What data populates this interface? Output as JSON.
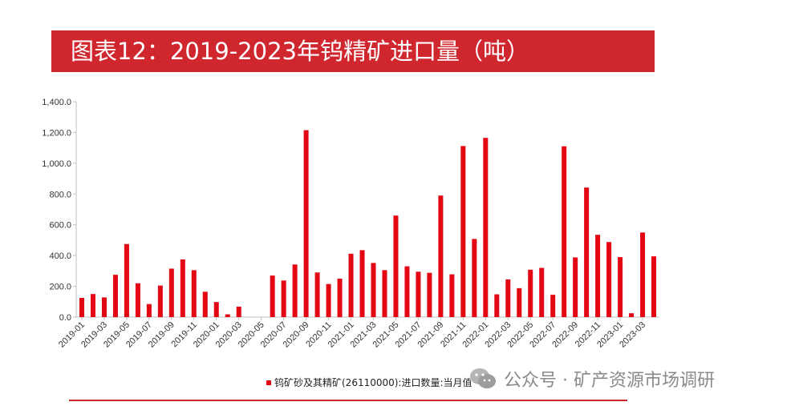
{
  "header": {
    "title": "图表12：2019-2023年钨精矿进口量（吨）"
  },
  "chart_data": {
    "type": "bar",
    "title": "图表12：2019-2023年钨精矿进口量（吨）",
    "xlabel": "",
    "ylabel": "",
    "ylim": [
      0,
      1400
    ],
    "yticks": [
      "0.0",
      "200.0",
      "400.0",
      "600.0",
      "800.0",
      "1,000.0",
      "1,200.0",
      "1,400.0"
    ],
    "ytick_values": [
      0,
      200,
      400,
      600,
      800,
      1000,
      1200,
      1400
    ],
    "categories": [
      "2019-01",
      "2019-02",
      "2019-03",
      "2019-04",
      "2019-05",
      "2019-06",
      "2019-07",
      "2019-08",
      "2019-09",
      "2019-10",
      "2019-11",
      "2019-12",
      "2020-01",
      "2020-02",
      "2020-03",
      "2020-04",
      "2020-05",
      "2020-06",
      "2020-07",
      "2020-08",
      "2020-09",
      "2020-10",
      "2020-11",
      "2020-12",
      "2021-01",
      "2021-02",
      "2021-03",
      "2021-04",
      "2021-05",
      "2021-06",
      "2021-07",
      "2021-08",
      "2021-09",
      "2021-10",
      "2021-11",
      "2021-12",
      "2022-01",
      "2022-02",
      "2022-03",
      "2022-04",
      "2022-05",
      "2022-06",
      "2022-07",
      "2022-08",
      "2022-09",
      "2022-10",
      "2022-11",
      "2022-12",
      "2023-01",
      "2023-02",
      "2023-03",
      "2023-04"
    ],
    "tick_labels": [
      "2019-01",
      "2019-03",
      "2019-05",
      "2019-07",
      "2019-09",
      "2019-11",
      "2020-01",
      "2020-03",
      "2020-05",
      "2020-07",
      "2020-09",
      "2020-11",
      "2021-01",
      "2021-03",
      "2021-05",
      "2021-07",
      "2021-09",
      "2021-11",
      "2022-01",
      "2022-03",
      "2022-05",
      "2022-07",
      "2022-09",
      "2022-11",
      "2023-01",
      "2023-03"
    ],
    "series": [
      {
        "name": "钨矿砂及其精矿(26110000):进口数量:当月值",
        "color": "#e30613",
        "values": [
          125,
          150,
          128,
          275,
          475,
          220,
          85,
          205,
          315,
          375,
          305,
          165,
          98,
          18,
          68,
          0,
          0,
          270,
          238,
          342,
          1215,
          290,
          215,
          250,
          412,
          435,
          352,
          305,
          660,
          330,
          295,
          288,
          790,
          278,
          1112,
          508,
          1165,
          148,
          245,
          188,
          308,
          320,
          145,
          1110,
          388,
          842,
          535,
          488,
          390,
          25,
          550,
          395
        ]
      }
    ]
  },
  "legend": {
    "label": "钨矿砂及其精矿(26110000):进口数量:当月值"
  },
  "watermark": {
    "text": "公众号 · 矿产资源市场调研",
    "icon": "wechat-icon"
  }
}
